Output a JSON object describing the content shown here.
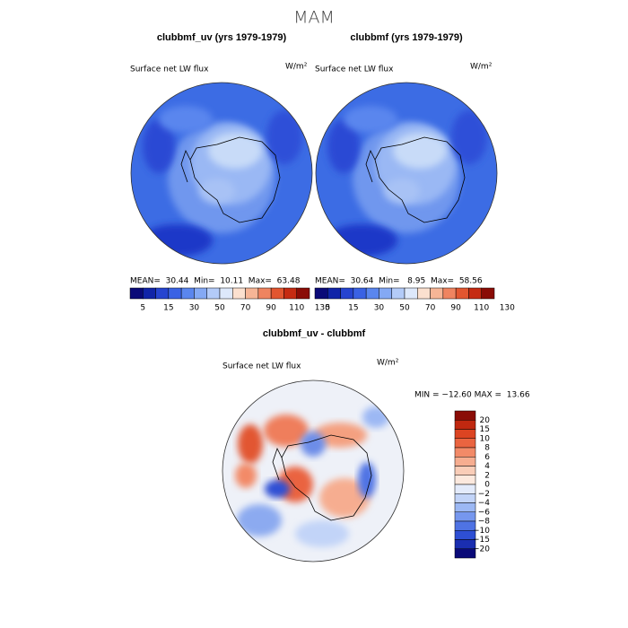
{
  "title": "MAM",
  "panels": [
    {
      "title": "clubbmf_uv (yrs 1979-1979)",
      "field": "Surface net LW flux",
      "units": "W/m²",
      "stats": "MEAN=  30.44  Min=  10.11  Max=  63.48"
    },
    {
      "title": "clubbmf (yrs 1979-1979)",
      "field": "Surface net LW flux",
      "units": "W/m²",
      "stats": "MEAN=  30.64  Min=   8.95  Max=  58.56"
    }
  ],
  "colorbar": {
    "labels": [
      "5",
      "15",
      "30",
      "50",
      "70",
      "90",
      "110",
      "130"
    ],
    "colors": [
      "#0a0a78",
      "#1024a8",
      "#2644d0",
      "#3a62e4",
      "#5a86ee",
      "#84a9f4",
      "#b3cbf8",
      "#dde8fb",
      "#fbe0cf",
      "#f6b596",
      "#ef8460",
      "#e25630",
      "#c52b12",
      "#8a0c06"
    ]
  },
  "difference": {
    "title": "clubbmf_uv - clubbmf",
    "field": "Surface net LW flux",
    "units": "W/m²",
    "stats": "MIN = −12.60 MAX =  13.66",
    "colorbar": {
      "labels": [
        "20",
        "15",
        "10",
        "8",
        "6",
        "4",
        "2",
        "0",
        "−2",
        "−4",
        "−6",
        "−8",
        "−10",
        "−15",
        "−20"
      ],
      "colors": [
        "#8a0c06",
        "#c02810",
        "#dc4422",
        "#ea6440",
        "#f28a68",
        "#f6ad90",
        "#f9cdb8",
        "#fce9de",
        "#e3ebfb",
        "#c2d4f8",
        "#9cb8f4",
        "#7697ee",
        "#4f73e4",
        "#2e4fd4",
        "#1a2eb0",
        "#0a0a78"
      ]
    }
  }
}
